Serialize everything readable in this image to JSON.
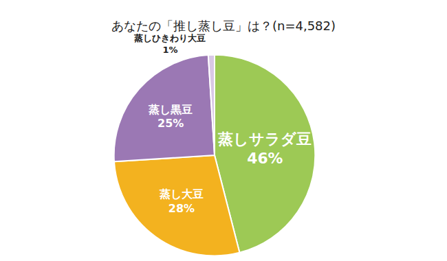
{
  "chart_data": {
    "type": "pie",
    "title": "あなたの「推し蒸し豆」は？(n=4,582)",
    "categories": [
      "蒸しサラダ豆",
      "蒸し大豆",
      "蒸し黒豆",
      "蒸しひきわり大豆"
    ],
    "values": [
      46,
      28,
      25,
      1
    ],
    "value_labels": [
      "46%",
      "28%",
      "25%",
      "1%"
    ],
    "colors": [
      "#9dc955",
      "#f3b21f",
      "#9b78b4",
      "#d9c8e6"
    ],
    "data_labels": true
  }
}
